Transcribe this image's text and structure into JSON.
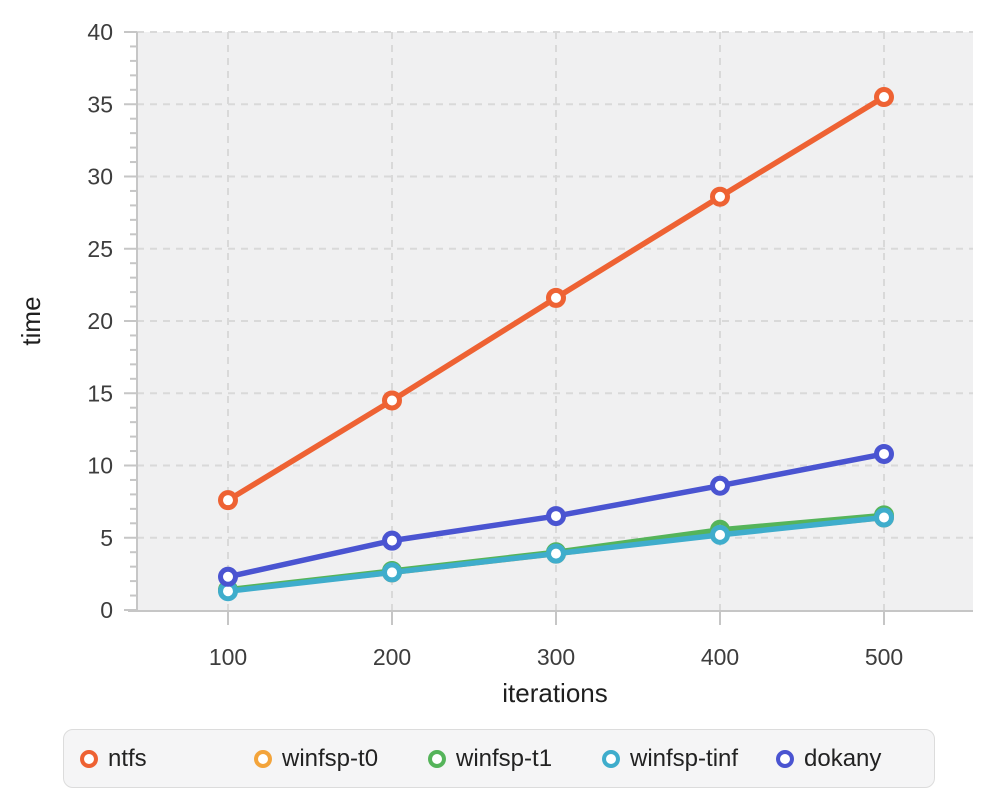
{
  "chart_data": {
    "type": "line",
    "x": [
      100,
      200,
      300,
      400,
      500
    ],
    "series": [
      {
        "name": "ntfs",
        "color": "#ee6233",
        "values": [
          7.6,
          14.5,
          21.6,
          28.6,
          35.5
        ]
      },
      {
        "name": "winfsp-t0",
        "color": "#f3a43b",
        "values": [
          1.35,
          2.6,
          3.9,
          5.25,
          6.4
        ]
      },
      {
        "name": "winfsp-t1",
        "color": "#55b45a",
        "values": [
          1.4,
          2.7,
          4.0,
          5.55,
          6.55
        ]
      },
      {
        "name": "winfsp-tinf",
        "color": "#3fadcc",
        "values": [
          1.3,
          2.6,
          3.9,
          5.2,
          6.4
        ]
      },
      {
        "name": "dokany",
        "color": "#4a54d1",
        "values": [
          2.3,
          4.8,
          6.5,
          8.6,
          10.8
        ]
      }
    ],
    "title": "",
    "xlabel": "iterations",
    "ylabel": "time",
    "xticks": [
      100,
      200,
      300,
      400,
      500
    ],
    "yticks": [
      0,
      5,
      10,
      15,
      20,
      25,
      30,
      35,
      40
    ],
    "ylim": [
      0,
      40
    ],
    "grid": true,
    "grid_style": "dashed",
    "legend_position": "bottom",
    "draw_order": [
      "winfsp-t0",
      "winfsp-t1",
      "winfsp-tinf",
      "dokany",
      "ntfs"
    ]
  },
  "styles": {
    "plot_bg": "#f0f0f1",
    "grid_color": "#d9d9d9",
    "axis_color": "#c6c6c6",
    "tick_label_color": "#3d3d3d",
    "axis_title_color": "#1f1f1f",
    "legend_bg": "#f5f5f6",
    "legend_border": "#dcdcdc",
    "legend_text": "#222222"
  }
}
